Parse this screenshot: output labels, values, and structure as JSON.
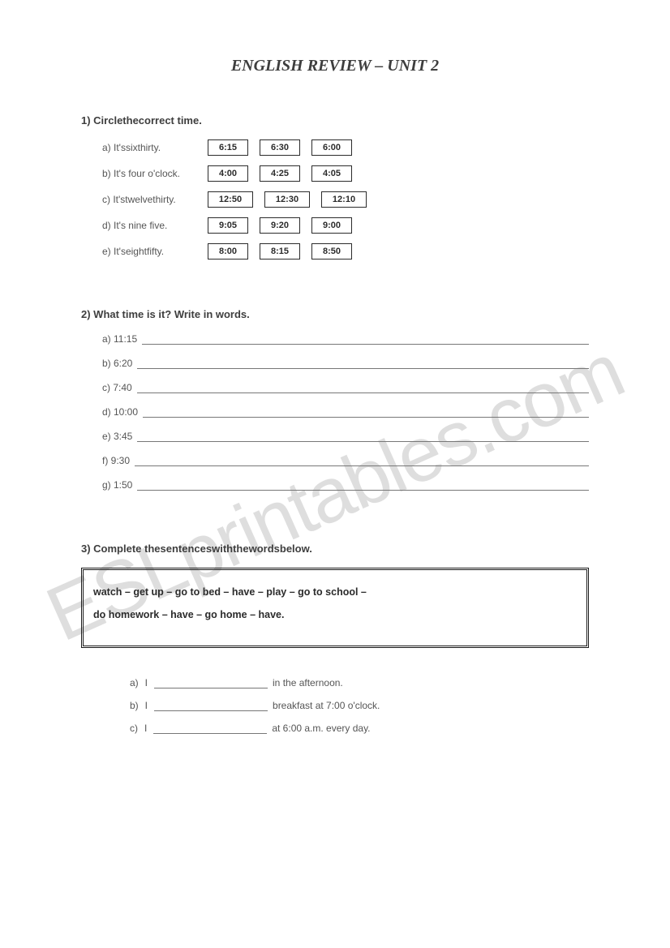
{
  "title": "ENGLISH REVIEW – UNIT 2",
  "watermark": "ESLprintables.com",
  "q1": {
    "header": "1)  Circlethecorrect time.",
    "rows": [
      {
        "letter": "a)",
        "text": "It'ssixthirty.",
        "times": [
          "6:15",
          "6:30",
          "6:00"
        ],
        "wide": false
      },
      {
        "letter": "b)",
        "text": "It's four o'clock.",
        "times": [
          "4:00",
          "4:25",
          "4:05"
        ],
        "wide": false
      },
      {
        "letter": "c)",
        "text": "It'stwelvethirty.",
        "times": [
          "12:50",
          "12:30",
          "12:10"
        ],
        "wide": true
      },
      {
        "letter": "d)",
        "text": "It's nine five.",
        "times": [
          "9:05",
          "9:20",
          "9:00"
        ],
        "wide": false
      },
      {
        "letter": "e)",
        "text": "It'seightfifty.",
        "times": [
          "8:00",
          "8:15",
          "8:50"
        ],
        "wide": false
      }
    ]
  },
  "q2": {
    "header": "2)  What time is it? Write in words.",
    "rows": [
      {
        "letter": "a)",
        "time": "11:15"
      },
      {
        "letter": "b)",
        "time": "6:20"
      },
      {
        "letter": "c)",
        "time": "7:40"
      },
      {
        "letter": "d)",
        "time": "10:00"
      },
      {
        "letter": "e)",
        "time": "3:45"
      },
      {
        "letter": "f)",
        "time": "9:30"
      },
      {
        "letter": "g)",
        "time": "1:50"
      }
    ]
  },
  "q3": {
    "header": "3)  Complete thesentenceswiththewordsbelow.",
    "wordbank_line1": "watch – get up – go to bed – have – play – go to school –",
    "wordbank_line2": "do homework – have – go home – have.",
    "rows": [
      {
        "letter": "a)",
        "pre": "I",
        "post": "in the afternoon."
      },
      {
        "letter": "b)",
        "pre": "I",
        "post": "breakfast at 7:00 o'clock."
      },
      {
        "letter": "c)",
        "pre": "I",
        "post": "at 6:00 a.m. every day."
      }
    ]
  }
}
